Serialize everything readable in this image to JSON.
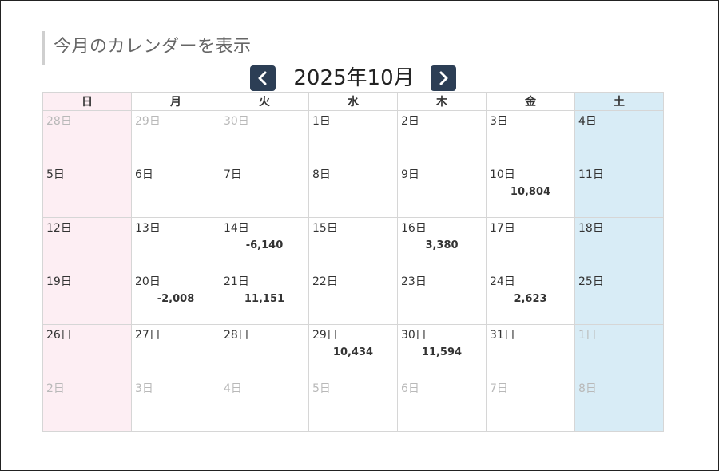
{
  "page": {
    "section_title": "今月のカレンダーを表示",
    "month_label": "2025年10月",
    "prev_icon": "chevron-left-icon",
    "next_icon": "chevron-right-icon",
    "accent_color": "#2c3e55",
    "sunday_color": "#fdeef3",
    "saturday_color": "#d8ecf6"
  },
  "weekdays": [
    "日",
    "月",
    "火",
    "水",
    "木",
    "金",
    "土"
  ],
  "weeks": [
    [
      {
        "label": "28日",
        "other": true
      },
      {
        "label": "29日",
        "other": true
      },
      {
        "label": "30日",
        "other": true
      },
      {
        "label": "1日"
      },
      {
        "label": "2日"
      },
      {
        "label": "3日"
      },
      {
        "label": "4日"
      }
    ],
    [
      {
        "label": "5日"
      },
      {
        "label": "6日"
      },
      {
        "label": "7日"
      },
      {
        "label": "8日"
      },
      {
        "label": "9日"
      },
      {
        "label": "10日",
        "amount": "10,804"
      },
      {
        "label": "11日"
      }
    ],
    [
      {
        "label": "12日"
      },
      {
        "label": "13日"
      },
      {
        "label": "14日",
        "amount": "-6,140"
      },
      {
        "label": "15日"
      },
      {
        "label": "16日",
        "amount": "3,380"
      },
      {
        "label": "17日"
      },
      {
        "label": "18日"
      }
    ],
    [
      {
        "label": "19日"
      },
      {
        "label": "20日",
        "amount": "-2,008"
      },
      {
        "label": "21日",
        "amount": "11,151"
      },
      {
        "label": "22日"
      },
      {
        "label": "23日"
      },
      {
        "label": "24日",
        "amount": "2,623"
      },
      {
        "label": "25日"
      }
    ],
    [
      {
        "label": "26日"
      },
      {
        "label": "27日"
      },
      {
        "label": "28日"
      },
      {
        "label": "29日",
        "amount": "10,434"
      },
      {
        "label": "30日",
        "amount": "11,594"
      },
      {
        "label": "31日"
      },
      {
        "label": "1日",
        "other": true
      }
    ],
    [
      {
        "label": "2日",
        "other": true
      },
      {
        "label": "3日",
        "other": true
      },
      {
        "label": "4日",
        "other": true
      },
      {
        "label": "5日",
        "other": true
      },
      {
        "label": "6日",
        "other": true
      },
      {
        "label": "7日",
        "other": true
      },
      {
        "label": "8日",
        "other": true
      }
    ]
  ]
}
